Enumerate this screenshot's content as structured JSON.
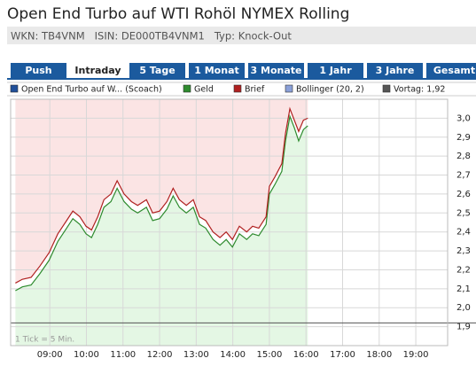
{
  "header": {
    "title": "Open End Turbo auf WTI Rohöl NYMEX Rolling",
    "subtitle": "WKN: TB4VNM   ISIN: DE000TB4VNM1   Typ: Knock-Out"
  },
  "tabs": [
    "Push",
    "Intraday",
    "5 Tage",
    "1 Monat",
    "3 Monate",
    "1 Jahr",
    "3 Jahre",
    "Gesamt"
  ],
  "active_tab": 1,
  "chart_data": {
    "type": "line",
    "legend_extra": [
      {
        "name": "Open End Turbo auf W... (Scoach)",
        "color": "#1f4f99"
      },
      {
        "name": "Bollinger (20, 2)",
        "color": "#8aa0d8"
      }
    ],
    "reference_line": {
      "label": "Vortag: 1,92",
      "value": 1.92,
      "color": "#555555"
    },
    "annotation": "1 Tick = 5 Min.",
    "x": [
      8.06,
      8.25,
      8.49,
      8.73,
      8.98,
      9.22,
      9.46,
      9.63,
      9.82,
      9.99,
      10.14,
      10.31,
      10.48,
      10.67,
      10.84,
      11.03,
      11.23,
      11.4,
      11.64,
      11.81,
      12.0,
      12.2,
      12.37,
      12.54,
      12.73,
      12.92,
      13.09,
      13.26,
      13.46,
      13.65,
      13.82,
      13.99,
      14.18,
      14.38,
      14.54,
      14.71,
      14.91,
      15.0,
      15.15,
      15.34,
      15.44,
      15.56,
      15.68,
      15.8,
      15.93,
      16.05
    ],
    "series": [
      {
        "name": "Geld",
        "color": "#2e8b2e",
        "values": [
          2.09,
          2.11,
          2.12,
          2.18,
          2.25,
          2.35,
          2.42,
          2.47,
          2.44,
          2.39,
          2.37,
          2.44,
          2.53,
          2.56,
          2.63,
          2.56,
          2.52,
          2.5,
          2.53,
          2.46,
          2.47,
          2.52,
          2.59,
          2.53,
          2.5,
          2.53,
          2.44,
          2.42,
          2.36,
          2.33,
          2.36,
          2.32,
          2.39,
          2.36,
          2.39,
          2.38,
          2.44,
          2.6,
          2.65,
          2.72,
          2.88,
          3.01,
          2.95,
          2.88,
          2.94,
          2.96
        ]
      },
      {
        "name": "Brief",
        "color": "#b02020",
        "values": [
          2.13,
          2.15,
          2.16,
          2.22,
          2.29,
          2.39,
          2.46,
          2.51,
          2.48,
          2.43,
          2.41,
          2.48,
          2.57,
          2.6,
          2.67,
          2.6,
          2.56,
          2.54,
          2.57,
          2.5,
          2.51,
          2.56,
          2.63,
          2.57,
          2.54,
          2.57,
          2.48,
          2.46,
          2.4,
          2.37,
          2.4,
          2.36,
          2.43,
          2.4,
          2.43,
          2.42,
          2.48,
          2.64,
          2.69,
          2.76,
          2.92,
          3.05,
          2.99,
          2.93,
          2.99,
          3.0
        ]
      }
    ],
    "xlim": [
      7.93,
      19.87
    ],
    "xticks": [
      {
        "value": 9,
        "label": "09:00"
      },
      {
        "value": 10,
        "label": "10:00"
      },
      {
        "value": 11,
        "label": "11:00"
      },
      {
        "value": 12,
        "label": "12:00"
      },
      {
        "value": 13,
        "label": "13:00"
      },
      {
        "value": 14,
        "label": "14:00"
      },
      {
        "value": 15,
        "label": "15:00"
      },
      {
        "value": 16,
        "label": "16:00"
      },
      {
        "value": 17,
        "label": "17:00"
      },
      {
        "value": 18,
        "label": "18:00"
      },
      {
        "value": 19,
        "label": "19:00"
      }
    ],
    "ylim": [
      1.8,
      3.1
    ],
    "yticks": [
      {
        "value": 1.9,
        "label": "1,9"
      },
      {
        "value": 2.0,
        "label": "2,0"
      },
      {
        "value": 2.1,
        "label": "2,1"
      },
      {
        "value": 2.2,
        "label": "2,2"
      },
      {
        "value": 2.3,
        "label": "2,3"
      },
      {
        "value": 2.4,
        "label": "2,4"
      },
      {
        "value": 2.5,
        "label": "2,5"
      },
      {
        "value": 2.6,
        "label": "2,6"
      },
      {
        "value": 2.7,
        "label": "2,7"
      },
      {
        "value": 2.8,
        "label": "2,8"
      },
      {
        "value": 2.9,
        "label": "2,9"
      },
      {
        "value": 3.0,
        "label": "3,0"
      }
    ],
    "grid": true
  }
}
